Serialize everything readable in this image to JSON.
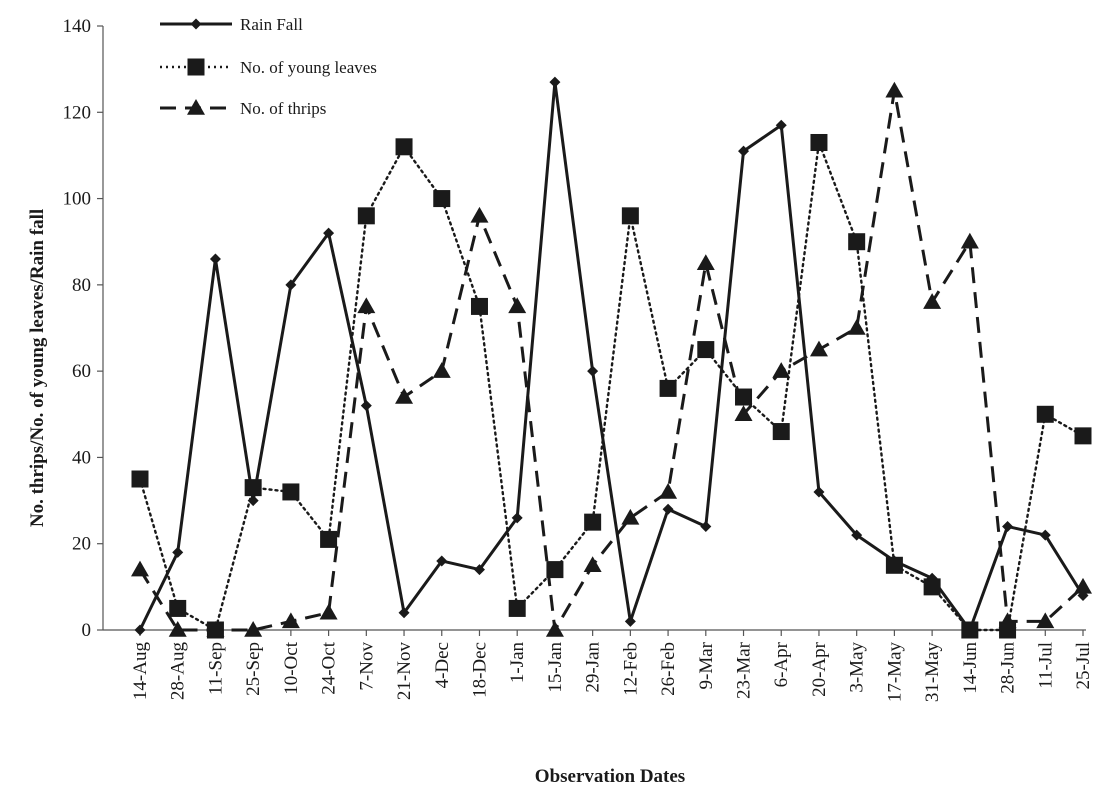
{
  "chart_data": {
    "type": "line",
    "title": "",
    "xlabel": "Observation Dates",
    "ylabel": "No. thrips/No. of young leaves/Rain fall",
    "ylim": [
      0,
      140
    ],
    "yticks": [
      0,
      20,
      40,
      60,
      80,
      100,
      120,
      140
    ],
    "grid": false,
    "legend_position": "top-left",
    "categories": [
      "14-Aug",
      "28-Aug",
      "11-Sep",
      "25-Sep",
      "10-Oct",
      "24-Oct",
      "7-Nov",
      "21-Nov",
      "4-Dec",
      "18-Dec",
      "1-Jan",
      "15-Jan",
      "29-Jan",
      "12-Feb",
      "26-Feb",
      "9-Mar",
      "23-Mar",
      "6-Apr",
      "20-Apr",
      "3-May",
      "17-May",
      "31-May",
      "14-Jun",
      "28-Jun",
      "11-Jul",
      "25-Jul"
    ],
    "series": [
      {
        "name": "Rain Fall",
        "marker": "diamond",
        "line": "solid",
        "color": "#1a1a1a",
        "values": [
          0,
          18,
          86,
          30,
          80,
          92,
          52,
          4,
          16,
          14,
          26,
          127,
          60,
          2,
          28,
          24,
          111,
          117,
          32,
          22,
          16,
          12,
          0,
          24,
          22,
          8
        ]
      },
      {
        "name": "No. of young leaves",
        "marker": "square",
        "line": "dotted",
        "color": "#1a1a1a",
        "values": [
          35,
          5,
          0,
          33,
          32,
          21,
          96,
          112,
          100,
          75,
          5,
          14,
          25,
          96,
          56,
          65,
          54,
          46,
          113,
          90,
          15,
          10,
          0,
          0,
          50,
          45
        ]
      },
      {
        "name": "No. of thrips",
        "marker": "triangle",
        "line": "dashed",
        "color": "#1a1a1a",
        "values": [
          14,
          0,
          0,
          0,
          2,
          4,
          75,
          54,
          60,
          96,
          75,
          0,
          15,
          26,
          32,
          85,
          50,
          60,
          65,
          70,
          125,
          76,
          90,
          2,
          2,
          10
        ]
      }
    ]
  }
}
